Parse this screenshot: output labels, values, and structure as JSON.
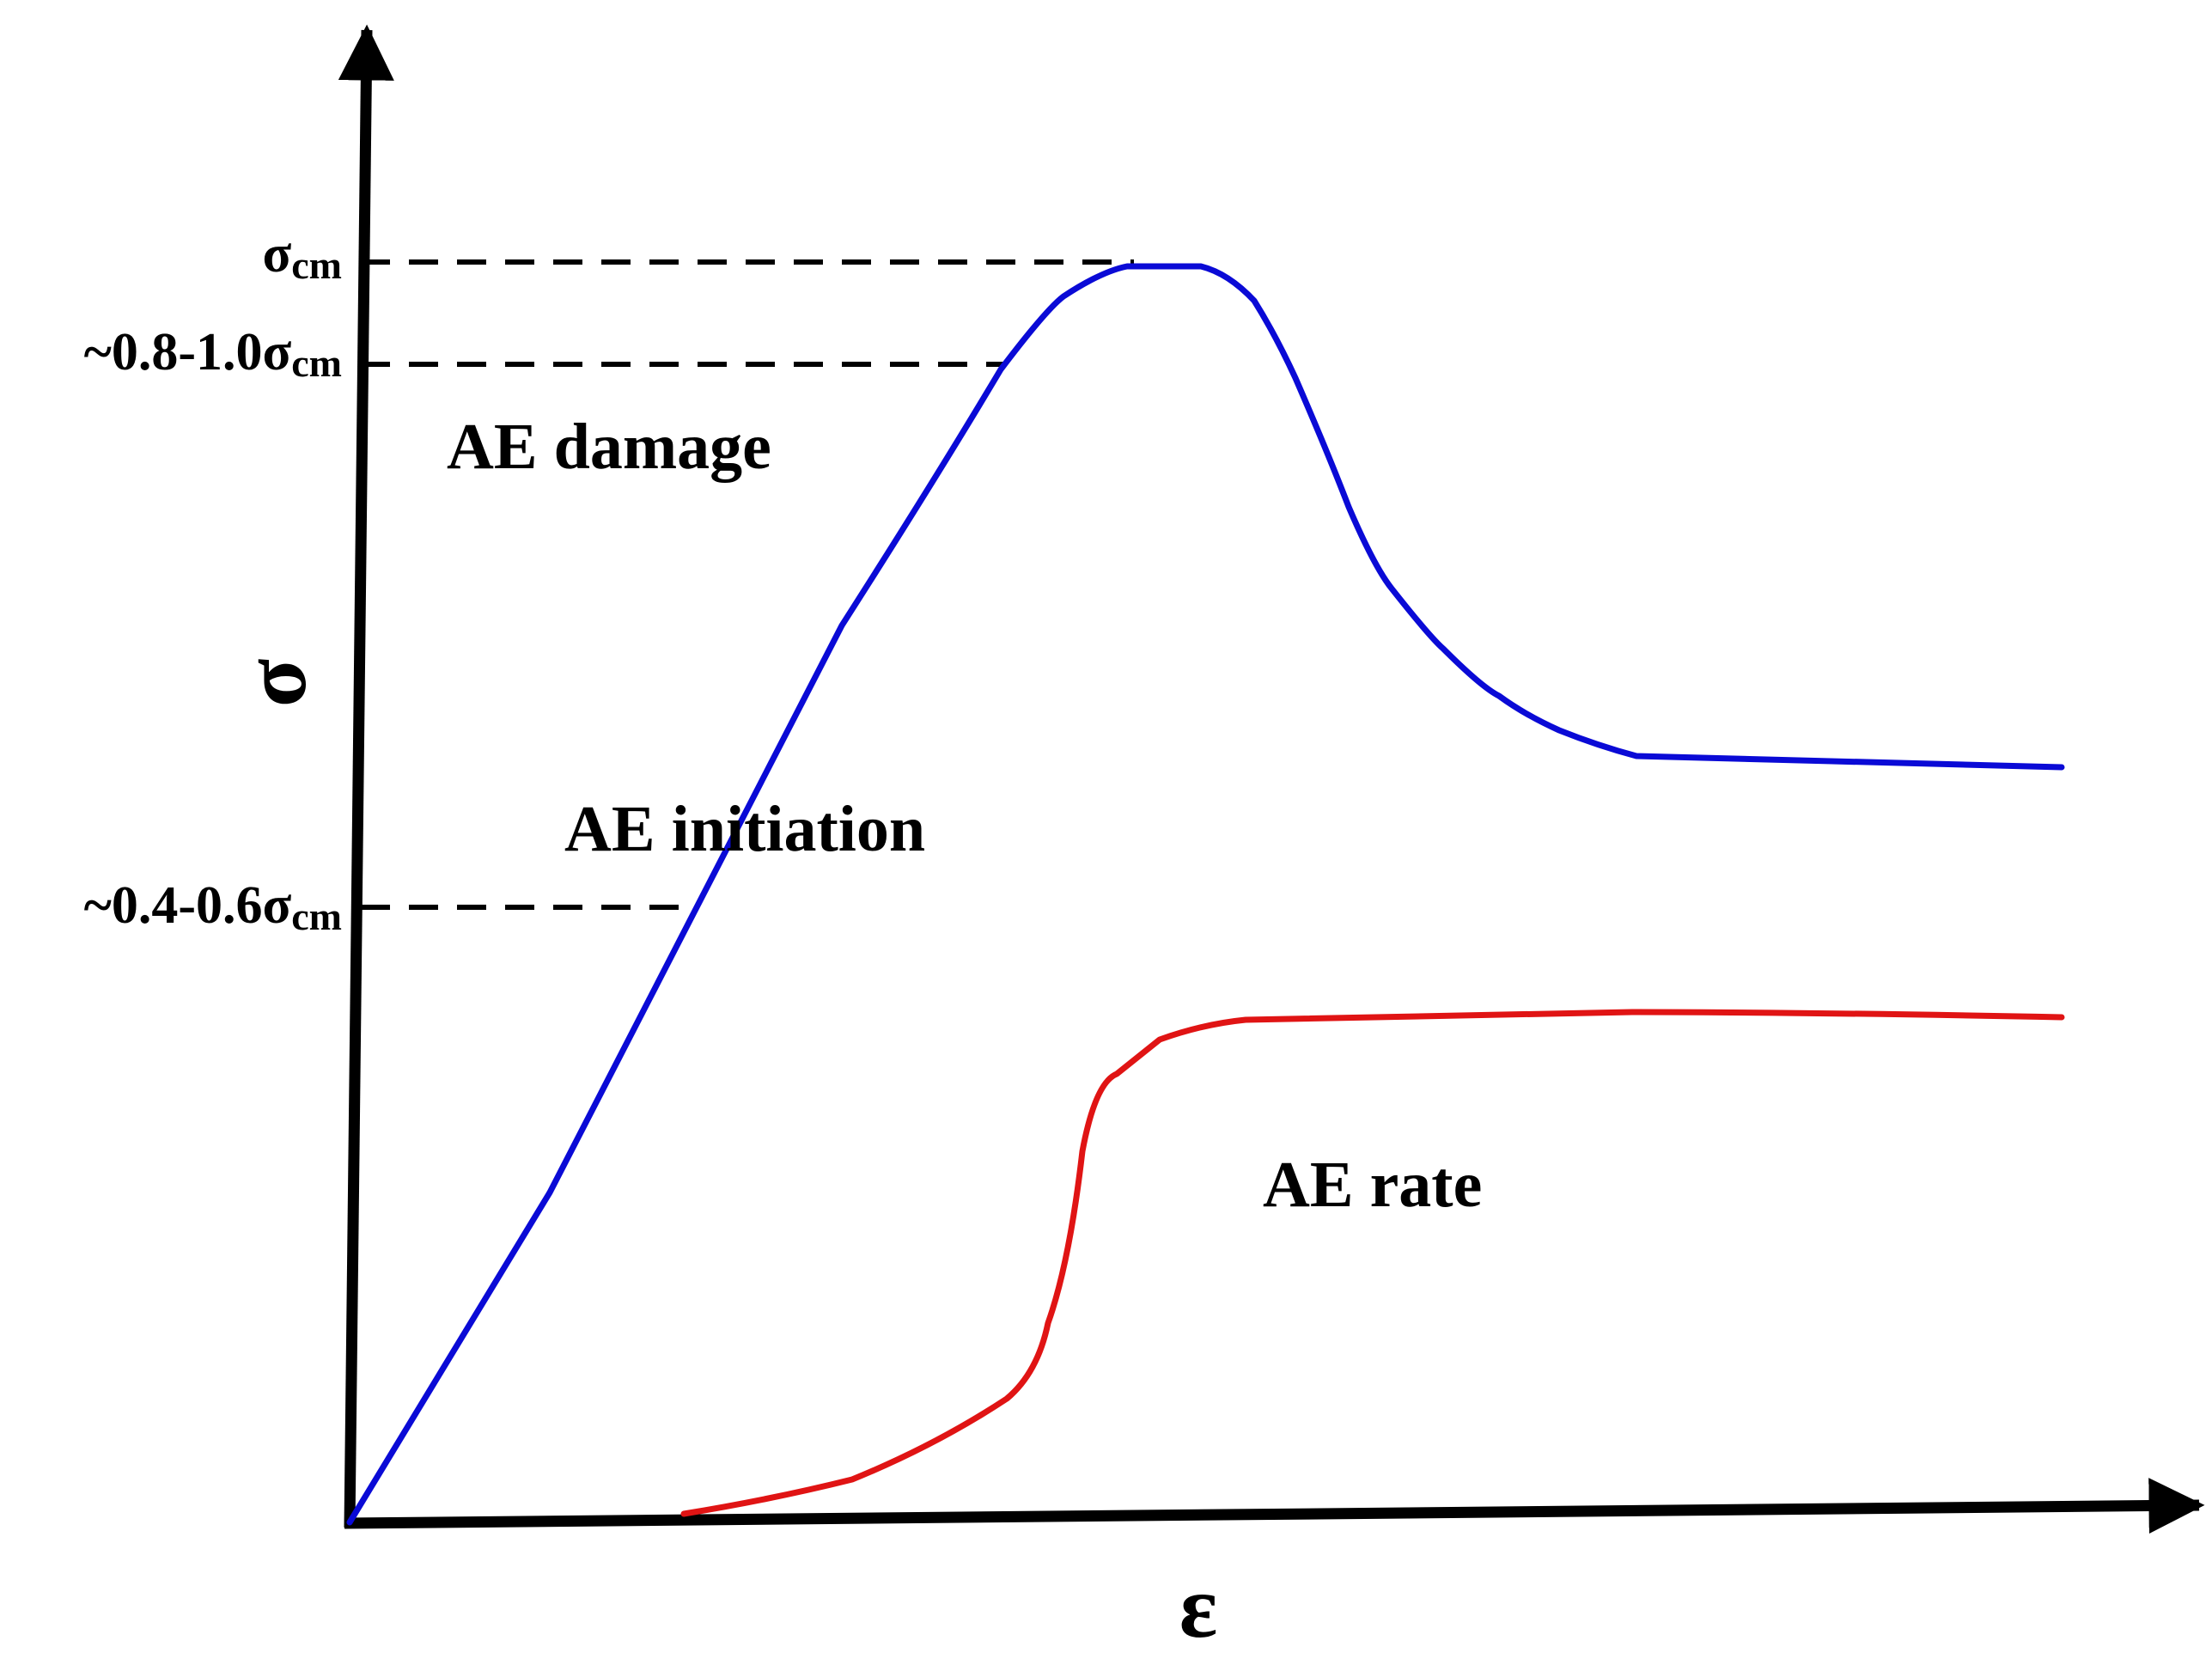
{
  "y_axis": {
    "symbol": "σ",
    "levels": [
      {
        "prefix": "σ",
        "subscript": "cm"
      },
      {
        "prefix": "~0.8-1.0σ",
        "subscript": "cm"
      },
      {
        "prefix": "~0.4-0.6σ",
        "subscript": "cm"
      }
    ]
  },
  "x_axis": {
    "symbol": "ε"
  },
  "regions": {
    "damage": "AE damage",
    "initiation": "AE initiation",
    "rate": "AE rate"
  },
  "curves": [
    {
      "id": "stress-strain-curve",
      "color": "#0a0ad6"
    },
    {
      "id": "ae-rate-curve",
      "color": "#e01414"
    }
  ],
  "colors": {
    "axis": "#000000",
    "guide": "#000000"
  }
}
